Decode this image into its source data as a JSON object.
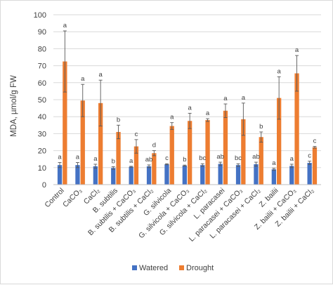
{
  "chart_data": {
    "type": "bar",
    "ylabel": "MDA, µmol/g FW",
    "xlabel": "",
    "title": "",
    "ylim": [
      0,
      100
    ],
    "yticks": [
      0,
      10,
      20,
      30,
      40,
      50,
      60,
      70,
      80,
      90,
      100
    ],
    "grid": true,
    "legend_position": "bottom",
    "categories": [
      "Control",
      "CaCO₃",
      "CaCl₂",
      "B. subtilis",
      "B. subtilis + CaCO₃",
      "B. subtilis + CaCl₂",
      "G. silvicola",
      "G. silvicola + CaCO₃",
      "G. silvicola + CaCl₂",
      "L. paracasei",
      "L. paracasei + CaCO₃",
      "L. paracasei + CaCl₂",
      "Z. bailii",
      "Z. bailii + CaCO₃",
      "Z. bailii + CaCl₂"
    ],
    "series": [
      {
        "name": "Watered",
        "color": "#4472c4",
        "values": [
          11.5,
          11.5,
          10.8,
          9.8,
          10.5,
          10.8,
          12.0,
          11.2,
          11.5,
          12.2,
          11.5,
          12.0,
          9.0,
          11.0,
          12.8
        ],
        "errors": [
          1.5,
          1.5,
          1.2,
          0.8,
          0.3,
          0.8,
          0.3,
          0.3,
          0.8,
          1.0,
          0.8,
          1.2,
          0.6,
          1.0,
          1.0
        ],
        "letters": [
          "a",
          "a",
          "a",
          "b",
          "a",
          "ab",
          "c",
          "b",
          "bc",
          "ab",
          "bc",
          "ab",
          "a",
          "a",
          "c"
        ]
      },
      {
        "name": "Drought",
        "color": "#ed7d31",
        "values": [
          72.5,
          49.5,
          48.0,
          31.0,
          22.5,
          18.5,
          34.5,
          37.5,
          38.0,
          43.5,
          38.5,
          28.0,
          51.0,
          65.5,
          22.0
        ],
        "errors": [
          18.0,
          9.5,
          13.5,
          4.0,
          4.0,
          1.5,
          2.0,
          4.5,
          0.8,
          4.0,
          9.5,
          3.0,
          12.5,
          10.5,
          0.5
        ],
        "letters": [
          "a",
          "a",
          "a",
          "b",
          "c",
          "d",
          "a",
          "a",
          "a",
          "a",
          "a",
          "b",
          "a",
          "a",
          "c"
        ]
      }
    ]
  }
}
